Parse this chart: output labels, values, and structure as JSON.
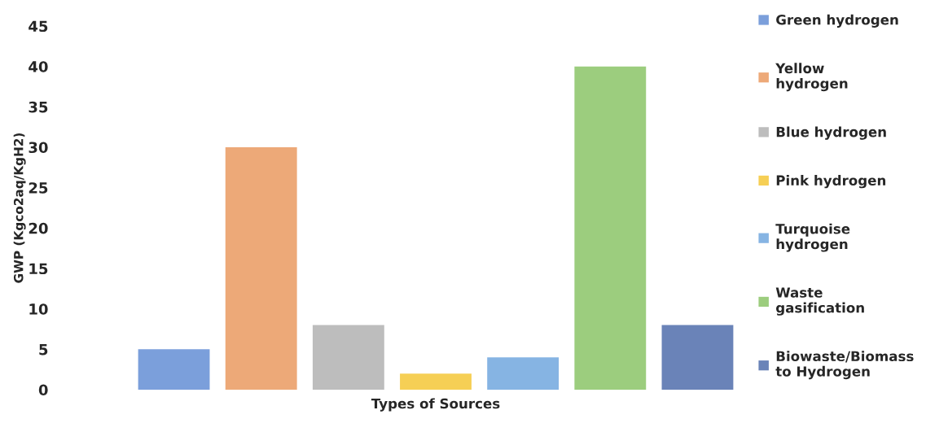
{
  "chart_data": {
    "type": "bar",
    "xlabel": "Types of Sources",
    "ylabel": "GWP (Kgco2aq/KgH2)",
    "categories": [
      null
    ],
    "series": [
      {
        "name": "Green hydrogen",
        "color": "#7b9fdb",
        "values": [
          5
        ]
      },
      {
        "name": "Yellow hydrogen",
        "color": "#eda978",
        "values": [
          30
        ]
      },
      {
        "name": "Blue hydrogen",
        "color": "#bdbdbd",
        "values": [
          8
        ]
      },
      {
        "name": "Pink hydrogen",
        "color": "#f6cf55",
        "values": [
          2
        ]
      },
      {
        "name": "Turquoise hydrogen",
        "color": "#86b4e3",
        "values": [
          4
        ]
      },
      {
        "name": "Waste gasification",
        "color": "#9ccd7e",
        "values": [
          40
        ]
      },
      {
        "name": "Biowaste/Biomass to Hydrogen",
        "color": "#6a83b8",
        "values": [
          8
        ]
      }
    ],
    "ylim": [
      0,
      45
    ],
    "yticks": [
      0,
      5,
      10,
      15,
      20,
      25,
      30,
      35,
      40,
      45
    ],
    "legend": "right"
  }
}
